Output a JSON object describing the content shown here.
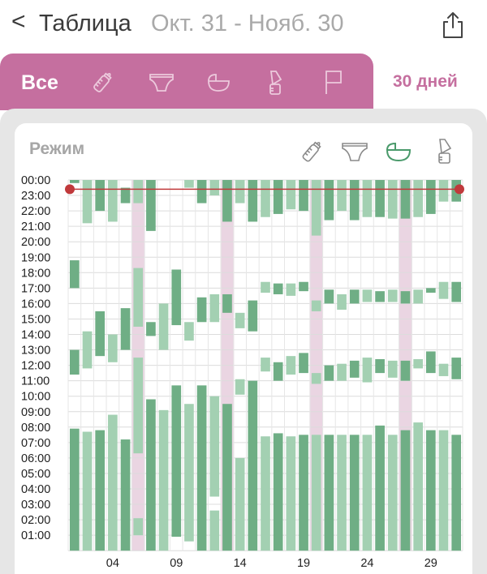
{
  "header": {
    "back_glyph": "<",
    "title": "Таблица",
    "range": "Окт. 31 - Нояб. 30",
    "share_icon": "share-icon"
  },
  "tabs": {
    "all_label": "Все",
    "icons": [
      "bottle-icon",
      "diaper-icon",
      "bed-icon",
      "pump-icon",
      "flag-icon"
    ],
    "days_label": "30 дней"
  },
  "card": {
    "title": "Режим",
    "filter_icons": [
      "bottle-icon",
      "diaper-icon",
      "bed-icon",
      "pump-icon"
    ],
    "active_filter": "bed-icon"
  },
  "colors": {
    "accent": "#c56f9f",
    "sleep_dark": "#6fae85",
    "sleep_light": "#a3d0b2",
    "highlight": "#ead5e2",
    "now_line": "#c0393b"
  },
  "chart_data": {
    "type": "bar",
    "subtype": "sleep-timeline",
    "y_labels": [
      "00:00",
      "23:00",
      "22:00",
      "21:00",
      "20:00",
      "19:00",
      "18:00",
      "17:00",
      "16:00",
      "15:00",
      "14:00",
      "13:00",
      "12:00",
      "11:00",
      "10:00",
      "09:00",
      "08:00",
      "07:00",
      "06:00",
      "05:00",
      "04:00",
      "03:00",
      "02:00",
      "01:00"
    ],
    "ylim": [
      0,
      24
    ],
    "x_tick_labels": [
      {
        "day": 4,
        "label": "04"
      },
      {
        "day": 9,
        "label": "09"
      },
      {
        "day": 14,
        "label": "14"
      },
      {
        "day": 19,
        "label": "19"
      },
      {
        "day": 24,
        "label": "24"
      },
      {
        "day": 29,
        "label": "29"
      }
    ],
    "days": 31,
    "highlight_days": [
      6,
      13,
      20,
      27
    ],
    "current_time_hour": 23.4,
    "grid": true,
    "segments_note": "each segment: day, start hour, end hour (hours counted upward from midnight)",
    "days_data": [
      {
        "day": 1,
        "segs": [
          [
            0,
            7.9
          ],
          [
            11.4,
            13.0
          ],
          [
            17.0,
            18.8
          ],
          [
            23.8,
            24
          ]
        ]
      },
      {
        "day": 2,
        "segs": [
          [
            0,
            7.7
          ],
          [
            11.8,
            14.2
          ],
          [
            21.2,
            24
          ]
        ]
      },
      {
        "day": 3,
        "segs": [
          [
            0,
            7.8
          ],
          [
            12.6,
            15.5
          ],
          [
            22.0,
            24
          ]
        ]
      },
      {
        "day": 4,
        "segs": [
          [
            0,
            8.8
          ],
          [
            12.2,
            14.0
          ],
          [
            21.3,
            24
          ]
        ]
      },
      {
        "day": 5,
        "segs": [
          [
            0,
            7.2
          ],
          [
            13.0,
            15.7
          ],
          [
            22.5,
            23.5
          ]
        ]
      },
      {
        "day": 6,
        "segs": [
          [
            1.0,
            2.1
          ],
          [
            6.3,
            12.5
          ],
          [
            14.5,
            18.3
          ],
          [
            22.5,
            24
          ]
        ]
      },
      {
        "day": 7,
        "segs": [
          [
            0,
            9.8
          ],
          [
            13.9,
            14.8
          ],
          [
            20.7,
            24
          ]
        ]
      },
      {
        "day": 8,
        "segs": [
          [
            0,
            9.1
          ],
          [
            13.0,
            16.0
          ]
        ]
      },
      {
        "day": 9,
        "segs": [
          [
            0.9,
            10.7
          ],
          [
            14.6,
            18.2
          ]
        ]
      },
      {
        "day": 10,
        "segs": [
          [
            0.6,
            9.5
          ],
          [
            13.6,
            14.8
          ],
          [
            23.5,
            24
          ]
        ]
      },
      {
        "day": 11,
        "segs": [
          [
            0,
            10.7
          ],
          [
            14.8,
            16.4
          ],
          [
            22.5,
            24
          ]
        ]
      },
      {
        "day": 12,
        "segs": [
          [
            0,
            2.6
          ],
          [
            3.5,
            10.0
          ],
          [
            14.8,
            16.6
          ],
          [
            23.0,
            24
          ]
        ]
      },
      {
        "day": 13,
        "segs": [
          [
            0,
            9.5
          ],
          [
            15.4,
            16.6
          ],
          [
            21.3,
            24
          ]
        ]
      },
      {
        "day": 14,
        "segs": [
          [
            0,
            6.0
          ],
          [
            10.1,
            11.1
          ],
          [
            14.4,
            15.4
          ],
          [
            22.5,
            24
          ]
        ]
      },
      {
        "day": 15,
        "segs": [
          [
            0,
            11.0
          ],
          [
            14.2,
            16.2
          ],
          [
            21.3,
            24
          ]
        ]
      },
      {
        "day": 16,
        "segs": [
          [
            0,
            7.4
          ],
          [
            11.6,
            12.5
          ],
          [
            16.7,
            17.4
          ],
          [
            21.6,
            24
          ]
        ]
      },
      {
        "day": 17,
        "segs": [
          [
            0,
            7.6
          ],
          [
            11.0,
            12.2
          ],
          [
            16.6,
            17.3
          ],
          [
            21.8,
            24
          ]
        ]
      },
      {
        "day": 18,
        "segs": [
          [
            0,
            7.4
          ],
          [
            11.4,
            12.6
          ],
          [
            16.5,
            17.3
          ],
          [
            22.1,
            24
          ]
        ]
      },
      {
        "day": 19,
        "segs": [
          [
            0,
            7.5
          ],
          [
            11.5,
            12.8
          ],
          [
            16.8,
            17.4
          ],
          [
            22.0,
            24
          ]
        ]
      },
      {
        "day": 20,
        "segs": [
          [
            0,
            7.5
          ],
          [
            10.8,
            11.5
          ],
          [
            15.5,
            16.2
          ],
          [
            20.4,
            24
          ]
        ]
      },
      {
        "day": 21,
        "segs": [
          [
            0,
            7.5
          ],
          [
            11.0,
            12.0
          ],
          [
            16.0,
            16.9
          ],
          [
            21.4,
            24
          ]
        ]
      },
      {
        "day": 22,
        "segs": [
          [
            0,
            7.5
          ],
          [
            11.0,
            12.1
          ],
          [
            15.6,
            16.6
          ],
          [
            22.0,
            24
          ]
        ]
      },
      {
        "day": 23,
        "segs": [
          [
            0,
            7.5
          ],
          [
            11.2,
            12.3
          ],
          [
            16.0,
            16.9
          ],
          [
            21.4,
            24
          ]
        ]
      },
      {
        "day": 24,
        "segs": [
          [
            0,
            7.5
          ],
          [
            10.9,
            12.5
          ],
          [
            16.1,
            16.9
          ],
          [
            21.6,
            24
          ]
        ]
      },
      {
        "day": 25,
        "segs": [
          [
            0,
            8.1
          ],
          [
            11.5,
            12.4
          ],
          [
            16.1,
            16.8
          ],
          [
            21.6,
            24
          ]
        ]
      },
      {
        "day": 26,
        "segs": [
          [
            0,
            7.5
          ],
          [
            11.2,
            12.3
          ],
          [
            16.1,
            16.9
          ],
          [
            21.5,
            24
          ]
        ]
      },
      {
        "day": 27,
        "segs": [
          [
            0,
            7.8
          ],
          [
            11.0,
            12.3
          ],
          [
            16.0,
            16.8
          ],
          [
            21.5,
            24
          ]
        ]
      },
      {
        "day": 28,
        "segs": [
          [
            0,
            8.3
          ],
          [
            11.8,
            12.4
          ],
          [
            16.0,
            16.9
          ],
          [
            21.6,
            24
          ]
        ]
      },
      {
        "day": 29,
        "segs": [
          [
            0,
            7.8
          ],
          [
            11.5,
            12.9
          ],
          [
            16.7,
            17.0
          ],
          [
            21.8,
            24
          ]
        ]
      },
      {
        "day": 30,
        "segs": [
          [
            0,
            7.8
          ],
          [
            11.3,
            12.1
          ],
          [
            16.3,
            17.4
          ],
          [
            22.6,
            24
          ]
        ]
      },
      {
        "day": 31,
        "segs": [
          [
            0,
            7.5
          ],
          [
            11.1,
            12.5
          ],
          [
            16.1,
            17.4
          ],
          [
            22.6,
            24
          ]
        ]
      }
    ]
  }
}
